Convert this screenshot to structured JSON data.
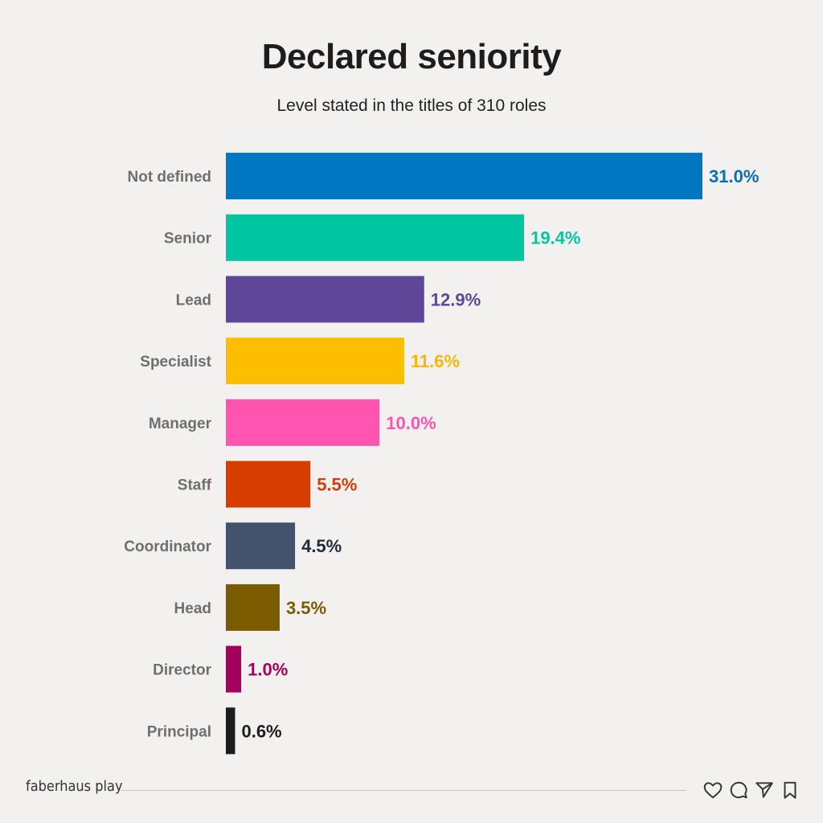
{
  "title": "Declared seniority",
  "subtitle": "Level stated in the titles of 310 roles",
  "footer": {
    "brand": "faberhaus play"
  },
  "icons": [
    "heart-icon",
    "comment-icon",
    "send-icon",
    "bookmark-icon"
  ],
  "chart_data": {
    "type": "bar",
    "orientation": "horizontal",
    "title": "Declared seniority",
    "subtitle": "Level stated in the titles of 310 roles",
    "categories": [
      "Not defined",
      "Senior",
      "Lead",
      "Specialist",
      "Manager",
      "Staff",
      "Coordinator",
      "Head",
      "Director",
      "Principal"
    ],
    "values": [
      31.0,
      19.4,
      12.9,
      11.6,
      10.0,
      5.5,
      4.5,
      3.5,
      1.0,
      0.6
    ],
    "value_labels": [
      "31.0%",
      "19.4%",
      "12.9%",
      "11.6%",
      "10.0%",
      "5.5%",
      "4.5%",
      "3.5%",
      "1.0%",
      "0.6%"
    ],
    "colors": [
      "#0077c0",
      "#00c5a1",
      "#5e4799",
      "#fdbe00",
      "#ff55b0",
      "#d53e00",
      "#42536b",
      "#7a5c00",
      "#a1005c",
      "#1c1c1c"
    ],
    "label_colors": [
      "#0a6fb5",
      "#00c5a1",
      "#5e4799",
      "#f7b600",
      "#ff55b0",
      "#d53e00",
      "#1d2a38",
      "#7a5c00",
      "#a1005c",
      "#1c1c1c"
    ],
    "xlim": [
      0,
      31.0
    ],
    "grid": false,
    "legend": "none"
  }
}
